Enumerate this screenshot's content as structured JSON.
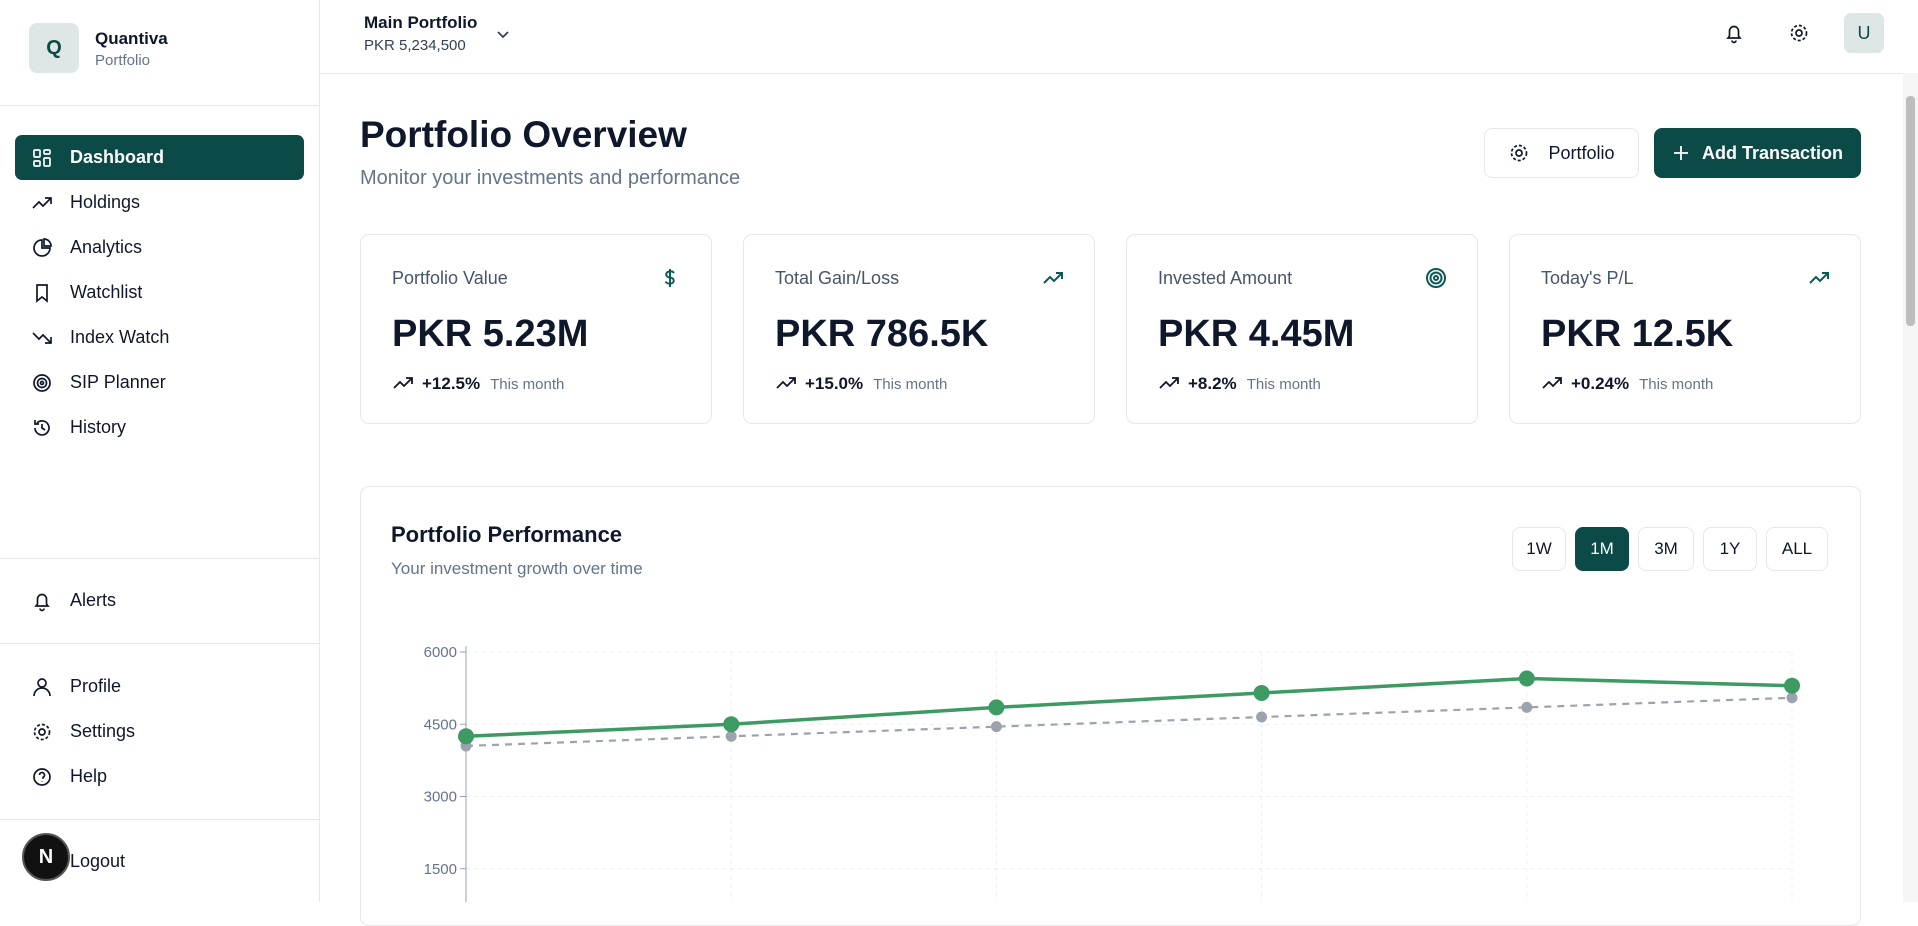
{
  "sidebar": {
    "brand": {
      "initial": "Q",
      "name": "Quantiva",
      "subtitle": "Portfolio"
    },
    "nav": [
      "Dashboard",
      "Holdings",
      "Analytics",
      "Watchlist",
      "Index Watch",
      "SIP Planner",
      "History"
    ],
    "active_nav": 0,
    "secondary": [
      "Alerts"
    ],
    "account": [
      "Profile",
      "Settings",
      "Help",
      "Logout"
    ],
    "badge": "N"
  },
  "header": {
    "portfolio_name": "Main Portfolio",
    "portfolio_value": "PKR 5,234,500",
    "avatar": "U"
  },
  "page": {
    "title": "Portfolio Overview",
    "subtitle": "Monitor your investments and performance",
    "buttons": [
      "Portfolio",
      "Add Transaction"
    ]
  },
  "cards": [
    {
      "label": "Portfolio Value",
      "value": "PKR 5.23M",
      "change": "+12.5%",
      "period": "This month"
    },
    {
      "label": "Total Gain/Loss",
      "value": "PKR 786.5K",
      "change": "+15.0%",
      "period": "This month"
    },
    {
      "label": "Invested Amount",
      "value": "PKR 4.45M",
      "change": "+8.2%",
      "period": "This month"
    },
    {
      "label": "Today's P/L",
      "value": "PKR 12.5K",
      "change": "+0.24%",
      "period": "This month"
    }
  ],
  "performance": {
    "title": "Portfolio Performance",
    "subtitle": "Your investment growth over time",
    "periods": [
      "1W",
      "1M",
      "3M",
      "1Y",
      "ALL"
    ],
    "active_period": "1M",
    "chart_data": {
      "type": "line",
      "series": [
        {
          "color": "#3d9a62",
          "values": [
            4250,
            4500,
            4850,
            5150,
            5450,
            5300
          ]
        },
        {
          "color": "#9ca3af",
          "values": [
            4050,
            4250,
            4450,
            4650,
            4850,
            5050
          ],
          "dashed": true
        }
      ],
      "ylim": [
        0,
        6000
      ],
      "yticks": [
        1500,
        3000,
        4500,
        6000
      ],
      "grid": true
    }
  }
}
